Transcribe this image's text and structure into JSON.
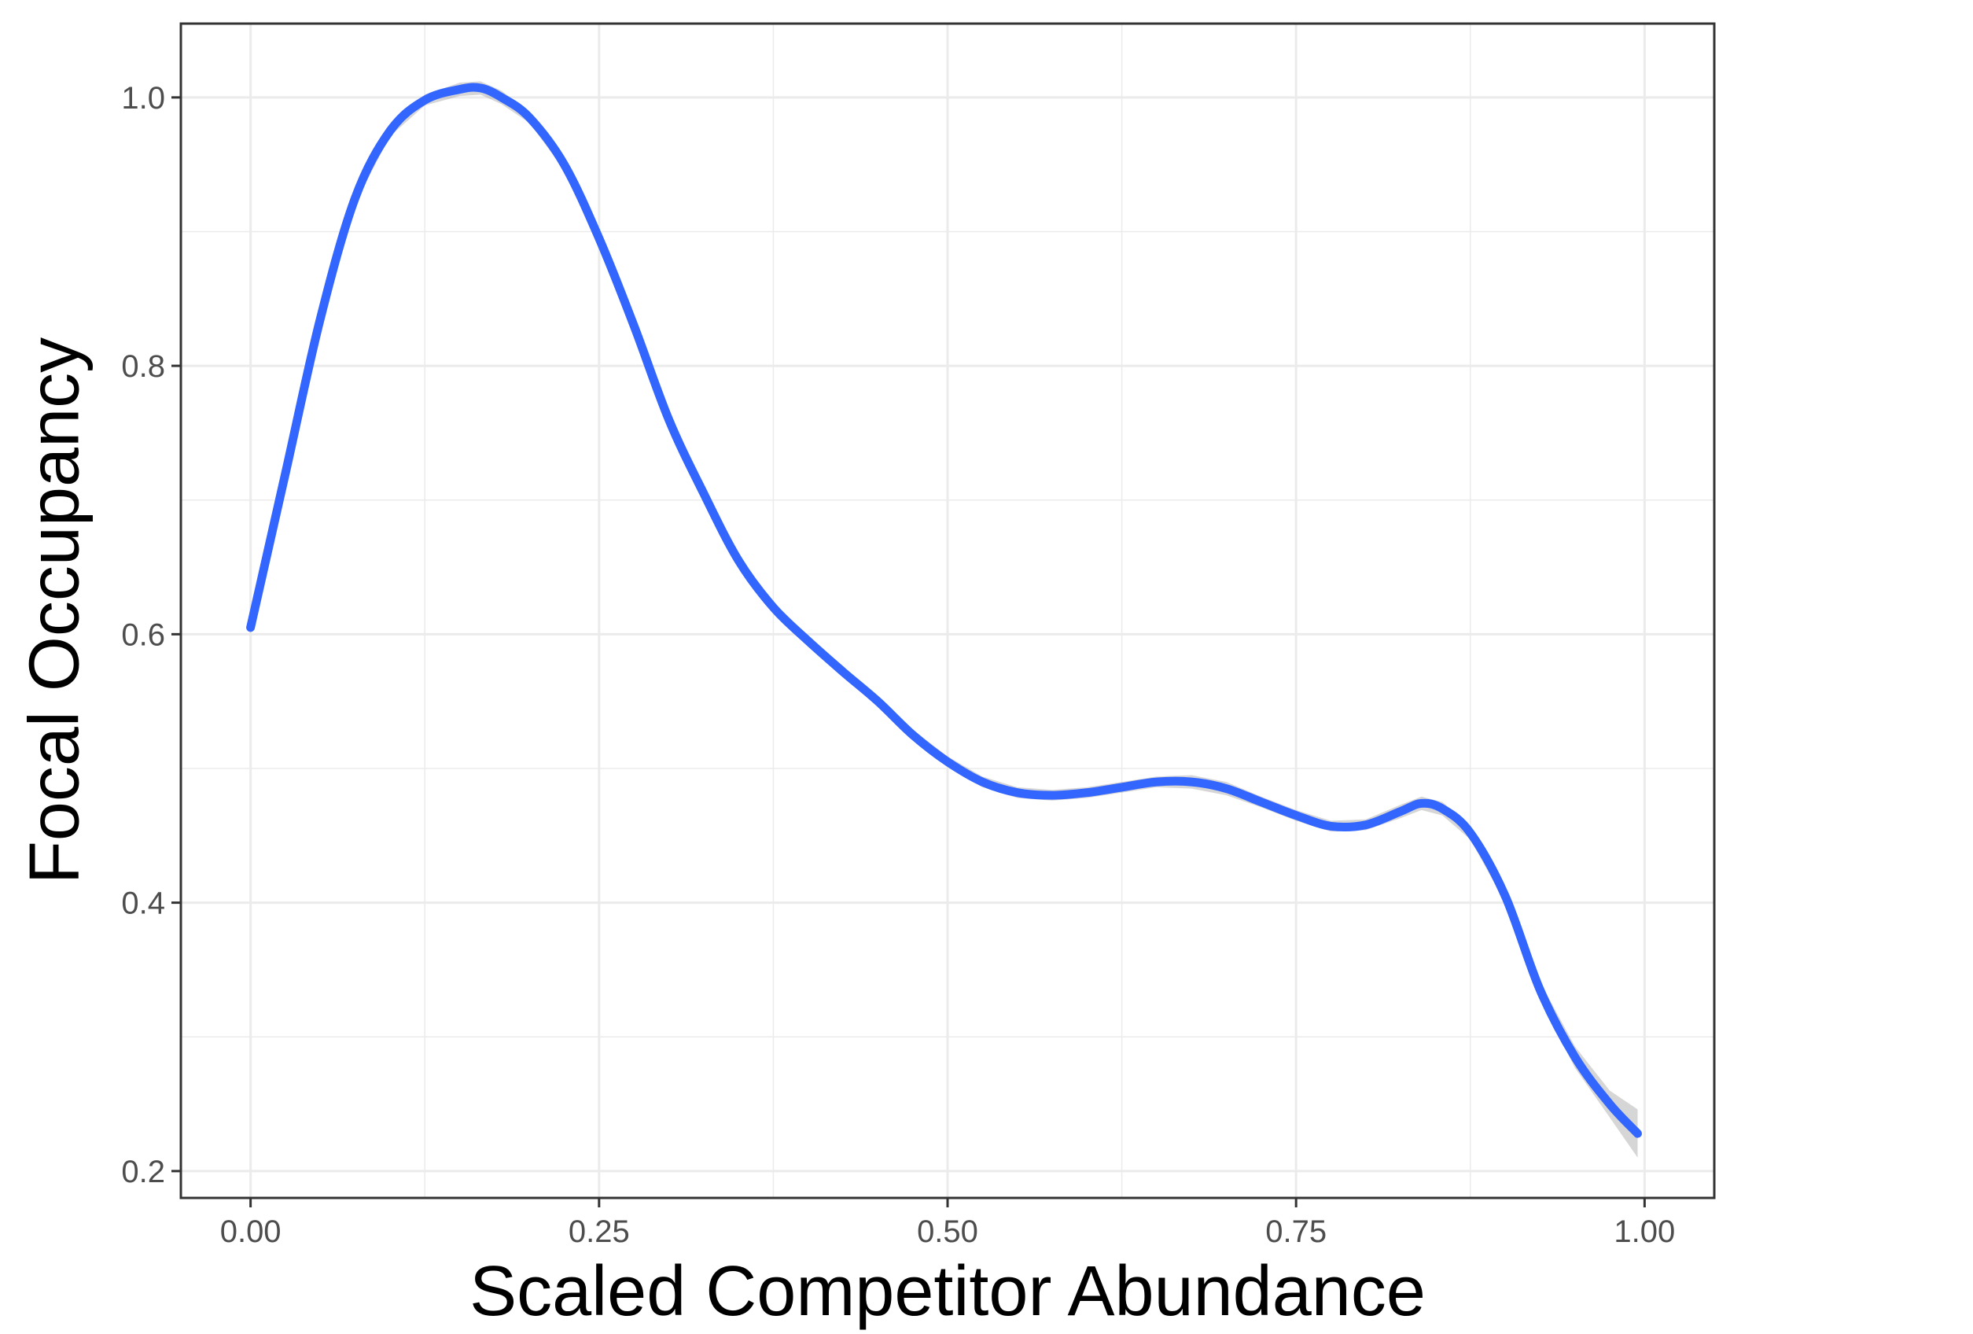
{
  "chart_data": {
    "type": "line",
    "title": "",
    "xlabel": "Scaled Competitor Abundance",
    "ylabel": "Focal Occupancy",
    "xlim": [
      -0.05,
      1.05
    ],
    "ylim": [
      0.18,
      1.055
    ],
    "x_ticks": [
      0,
      0.25,
      0.5,
      0.75,
      1
    ],
    "x_tick_labels": [
      "0.00",
      "0.25",
      "0.50",
      "0.75",
      "1.00"
    ],
    "y_ticks": [
      0.2,
      0.4,
      0.6,
      0.8,
      1.0
    ],
    "y_tick_labels": [
      "0.2",
      "0.4",
      "0.6",
      "0.8",
      "1.0"
    ],
    "grid": true,
    "legend": "none",
    "series": [
      {
        "color": "#3366ff",
        "ribbon_color": "#999999",
        "x": [
          0.0,
          0.025,
          0.05,
          0.075,
          0.1,
          0.125,
          0.15,
          0.165,
          0.18,
          0.2,
          0.225,
          0.25,
          0.275,
          0.3,
          0.325,
          0.35,
          0.375,
          0.4,
          0.425,
          0.45,
          0.475,
          0.5,
          0.525,
          0.55,
          0.575,
          0.6,
          0.625,
          0.65,
          0.675,
          0.7,
          0.725,
          0.75,
          0.775,
          0.8,
          0.825,
          0.84,
          0.855,
          0.875,
          0.9,
          0.925,
          0.95,
          0.975,
          0.995
        ],
        "y": [
          0.605,
          0.72,
          0.835,
          0.925,
          0.975,
          0.998,
          1.006,
          1.007,
          1.0,
          0.985,
          0.95,
          0.895,
          0.83,
          0.76,
          0.705,
          0.655,
          0.62,
          0.595,
          0.572,
          0.55,
          0.525,
          0.505,
          0.49,
          0.482,
          0.48,
          0.482,
          0.486,
          0.49,
          0.49,
          0.485,
          0.475,
          0.465,
          0.457,
          0.458,
          0.468,
          0.474,
          0.47,
          0.452,
          0.405,
          0.335,
          0.285,
          0.25,
          0.228
        ],
        "lower": [
          0.6,
          0.716,
          0.831,
          0.921,
          0.971,
          0.994,
          1.001,
          1.002,
          0.995,
          0.981,
          0.946,
          0.891,
          0.826,
          0.756,
          0.701,
          0.651,
          0.616,
          0.591,
          0.568,
          0.546,
          0.521,
          0.501,
          0.486,
          0.478,
          0.476,
          0.478,
          0.482,
          0.486,
          0.485,
          0.48,
          0.471,
          0.461,
          0.453,
          0.454,
          0.463,
          0.469,
          0.465,
          0.447,
          0.4,
          0.329,
          0.277,
          0.24,
          0.21
        ],
        "upper": [
          0.61,
          0.724,
          0.839,
          0.929,
          0.979,
          1.002,
          1.011,
          1.012,
          1.005,
          0.989,
          0.954,
          0.899,
          0.834,
          0.764,
          0.709,
          0.659,
          0.624,
          0.599,
          0.576,
          0.554,
          0.529,
          0.509,
          0.494,
          0.486,
          0.484,
          0.486,
          0.49,
          0.494,
          0.495,
          0.49,
          0.479,
          0.469,
          0.461,
          0.462,
          0.473,
          0.479,
          0.475,
          0.457,
          0.41,
          0.341,
          0.293,
          0.26,
          0.246
        ]
      }
    ]
  }
}
